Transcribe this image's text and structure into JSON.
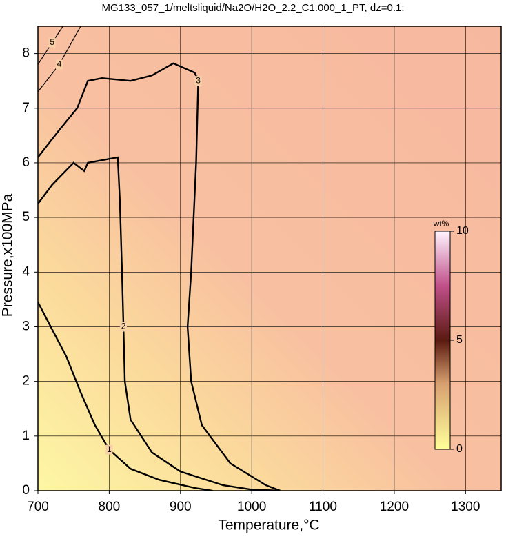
{
  "chart_data": {
    "type": "contour",
    "title": "MG133_057_1/meltsliquid/Na2O/H2O_2.2_C1.000_1_PT, dz=0.1:",
    "x_label": "Temperature,°C",
    "y_label": "Pressure,x100MPa",
    "xlim": [
      700,
      1350
    ],
    "ylim": [
      0,
      8.5
    ],
    "xticks": [
      700,
      800,
      900,
      1000,
      1100,
      1200,
      1300
    ],
    "yticks": [
      0,
      1,
      2,
      3,
      4,
      5,
      6,
      7,
      8
    ],
    "grid": true,
    "series": [
      {
        "name": "1",
        "color": "#000000",
        "x": [
          700,
          720,
          740,
          760,
          780,
          800,
          830,
          870,
          920,
          945
        ],
        "y": [
          3.45,
          2.95,
          2.45,
          1.8,
          1.2,
          0.75,
          0.4,
          0.2,
          0.05,
          0
        ]
      },
      {
        "name": "2",
        "color": "#000000",
        "x": [
          700,
          720,
          750,
          765,
          770,
          812,
          815,
          818,
          820,
          822,
          830,
          860,
          900,
          960,
          1000,
          1040
        ],
        "y": [
          5.25,
          5.6,
          6.0,
          5.85,
          6.0,
          6.1,
          5.3,
          4.0,
          3.0,
          2.0,
          1.3,
          0.7,
          0.35,
          0.1,
          0.02,
          0
        ]
      },
      {
        "name": "3",
        "color": "#000000",
        "x": [
          700,
          730,
          755,
          770,
          790,
          830,
          860,
          890,
          920,
          925,
          922,
          915,
          910,
          915,
          930,
          970,
          1020,
          1040
        ],
        "y": [
          6.1,
          6.6,
          7.0,
          7.5,
          7.55,
          7.5,
          7.6,
          7.82,
          7.65,
          7.5,
          6.0,
          4.0,
          3.0,
          2.0,
          1.2,
          0.5,
          0.1,
          0
        ]
      },
      {
        "name": "4",
        "color": "#000000",
        "x": [
          700,
          715,
          730,
          745,
          760
        ],
        "y": [
          7.3,
          7.55,
          7.8,
          8.15,
          8.5
        ]
      },
      {
        "name": "5",
        "color": "#000000",
        "x": [
          700,
          710,
          720,
          735
        ],
        "y": [
          7.8,
          8.0,
          8.2,
          8.5
        ]
      }
    ],
    "colorbar": {
      "label": "wt%",
      "lim": [
        0,
        10
      ],
      "ticks": [
        0,
        5,
        10
      ]
    }
  }
}
